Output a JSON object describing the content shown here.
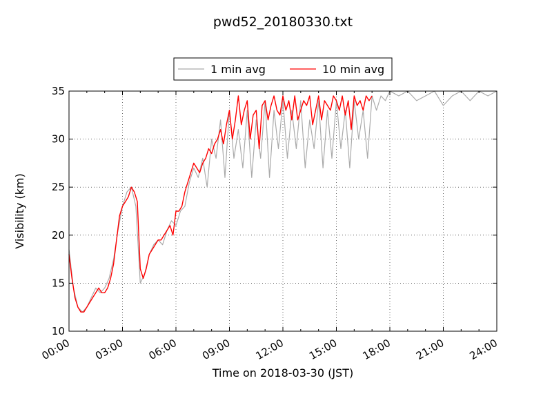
{
  "chart_data": {
    "type": "line",
    "title": "pwd52_20180330.txt",
    "xlabel": "Time on 2018-03-30 (JST)",
    "ylabel": "Visibility (km)",
    "xlim": [
      "00:00",
      "24:00"
    ],
    "ylim": [
      10,
      35
    ],
    "x_ticks": [
      "00:00",
      "03:00",
      "06:00",
      "09:00",
      "12:00",
      "15:00",
      "18:00",
      "21:00",
      "24:00"
    ],
    "y_ticks": [
      "10",
      "15",
      "20",
      "25",
      "30",
      "35"
    ],
    "grid": true,
    "legend_position": "top-center, above plot",
    "series": [
      {
        "name": "1 min avg",
        "color": "#aaaaaa",
        "x": [
          "00:00",
          "00:15",
          "00:30",
          "00:45",
          "01:00",
          "01:15",
          "01:30",
          "01:45",
          "02:00",
          "02:15",
          "02:30",
          "02:45",
          "03:00",
          "03:15",
          "03:30",
          "03:45",
          "04:00",
          "04:15",
          "04:30",
          "04:45",
          "05:00",
          "05:15",
          "05:30",
          "05:45",
          "06:00",
          "06:15",
          "06:30",
          "06:45",
          "07:00",
          "07:15",
          "07:30",
          "07:45",
          "08:00",
          "08:15",
          "08:30",
          "08:45",
          "09:00",
          "09:15",
          "09:30",
          "09:45",
          "10:00",
          "10:15",
          "10:30",
          "10:45",
          "11:00",
          "11:15",
          "11:30",
          "11:45",
          "12:00",
          "12:15",
          "12:30",
          "12:45",
          "13:00",
          "13:15",
          "13:30",
          "13:45",
          "14:00",
          "14:15",
          "14:30",
          "14:45",
          "15:00",
          "15:15",
          "15:30",
          "15:45",
          "16:00",
          "16:15",
          "16:30",
          "16:45",
          "17:00",
          "17:15",
          "17:30",
          "17:45",
          "18:00",
          "18:30",
          "19:00",
          "19:30",
          "20:00",
          "20:30",
          "21:00",
          "21:30",
          "22:00",
          "22:30",
          "23:00",
          "23:30",
          "24:00"
        ],
        "values": [
          18.5,
          14.5,
          12.5,
          12.0,
          12.5,
          13.5,
          14.5,
          14.0,
          14.5,
          15.5,
          17.5,
          20.5,
          23.0,
          24.5,
          25.0,
          23.0,
          15.0,
          16.0,
          18.0,
          19.0,
          19.5,
          19.0,
          20.5,
          21.5,
          21.0,
          22.5,
          23.0,
          25.5,
          27.0,
          26.0,
          28.0,
          25.0,
          30.0,
          28.0,
          32.0,
          26.0,
          33.0,
          28.0,
          31.0,
          27.0,
          33.0,
          26.0,
          32.0,
          28.0,
          34.0,
          26.0,
          33.0,
          29.0,
          34.0,
          28.0,
          33.0,
          29.0,
          34.0,
          27.0,
          32.0,
          29.0,
          34.0,
          27.0,
          33.0,
          28.0,
          34.0,
          29.0,
          33.0,
          27.0,
          34.0,
          30.0,
          33.0,
          28.0,
          34.5,
          33.0,
          34.5,
          34.0,
          35.0,
          34.5,
          35.0,
          34.0,
          34.5,
          35.0,
          33.5,
          34.5,
          35.0,
          34.0,
          35.0,
          34.5,
          35.0
        ]
      },
      {
        "name": "10 min avg",
        "color": "#ff0000",
        "x": [
          "00:00",
          "00:10",
          "00:20",
          "00:30",
          "00:40",
          "00:50",
          "01:00",
          "01:10",
          "01:20",
          "01:30",
          "01:40",
          "01:50",
          "02:00",
          "02:10",
          "02:20",
          "02:30",
          "02:40",
          "02:50",
          "03:00",
          "03:10",
          "03:20",
          "03:30",
          "03:40",
          "03:50",
          "04:00",
          "04:10",
          "04:20",
          "04:30",
          "04:40",
          "04:50",
          "05:00",
          "05:10",
          "05:20",
          "05:30",
          "05:40",
          "05:50",
          "06:00",
          "06:10",
          "06:20",
          "06:30",
          "06:40",
          "06:50",
          "07:00",
          "07:10",
          "07:20",
          "07:30",
          "07:40",
          "07:50",
          "08:00",
          "08:10",
          "08:20",
          "08:30",
          "08:40",
          "08:50",
          "09:00",
          "09:10",
          "09:20",
          "09:30",
          "09:40",
          "09:50",
          "10:00",
          "10:10",
          "10:20",
          "10:30",
          "10:40",
          "10:50",
          "11:00",
          "11:10",
          "11:20",
          "11:30",
          "11:40",
          "11:50",
          "12:00",
          "12:10",
          "12:20",
          "12:30",
          "12:40",
          "12:50",
          "13:00",
          "13:10",
          "13:20",
          "13:30",
          "13:40",
          "13:50",
          "14:00",
          "14:10",
          "14:20",
          "14:30",
          "14:40",
          "14:50",
          "15:00",
          "15:10",
          "15:20",
          "15:30",
          "15:40",
          "15:50",
          "16:00",
          "16:10",
          "16:20",
          "16:30",
          "16:40",
          "16:50",
          "17:00"
        ],
        "values": [
          18.0,
          15.5,
          13.5,
          12.5,
          12.0,
          12.0,
          12.5,
          13.0,
          13.5,
          14.0,
          14.5,
          14.0,
          14.0,
          14.5,
          15.5,
          17.0,
          19.5,
          22.0,
          23.0,
          23.5,
          24.0,
          25.0,
          24.5,
          23.5,
          16.5,
          15.5,
          16.5,
          18.0,
          18.5,
          19.0,
          19.5,
          19.5,
          20.0,
          20.5,
          21.0,
          20.0,
          22.5,
          22.5,
          23.0,
          24.5,
          25.5,
          26.5,
          27.5,
          27.0,
          26.5,
          27.5,
          28.0,
          29.0,
          28.5,
          29.5,
          30.0,
          31.0,
          29.5,
          31.5,
          33.0,
          30.0,
          32.0,
          34.5,
          31.5,
          33.0,
          34.0,
          30.0,
          32.5,
          33.0,
          29.0,
          33.5,
          34.0,
          32.0,
          33.5,
          34.5,
          33.0,
          32.5,
          34.5,
          33.0,
          34.0,
          32.0,
          34.5,
          32.0,
          33.0,
          34.0,
          33.5,
          34.5,
          31.5,
          33.0,
          34.5,
          32.0,
          34.0,
          33.5,
          33.0,
          34.5,
          34.0,
          33.0,
          34.5,
          32.5,
          34.0,
          31.0,
          34.5,
          33.5,
          34.0,
          33.0,
          34.5,
          34.0,
          34.5
        ]
      }
    ]
  }
}
